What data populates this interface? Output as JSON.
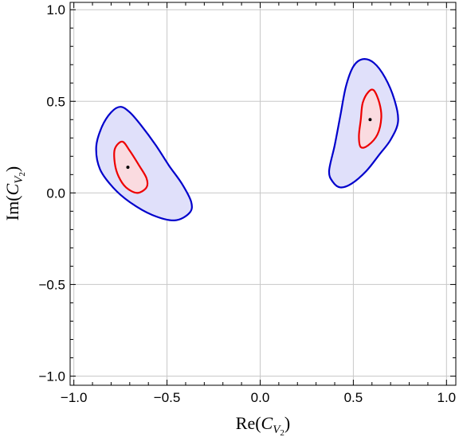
{
  "chart_data": {
    "type": "contour",
    "title": "",
    "xlabel": {
      "prefix": "Re(",
      "var": "C",
      "sub": "V",
      "subsub": "2",
      "suffix": ")"
    },
    "ylabel": {
      "prefix": "Im(",
      "var": "C",
      "sub": "V",
      "subsub": "2",
      "suffix": ")"
    },
    "xlim": [
      -1.02,
      1.05
    ],
    "ylim": [
      -1.05,
      1.04
    ],
    "xticks": [
      -1.0,
      -0.5,
      0.0,
      0.5,
      1.0
    ],
    "xtick_labels": [
      "−1.0",
      "−0.5",
      "0.0",
      "0.5",
      "1.0"
    ],
    "yticks": [
      -1.0,
      -0.5,
      0.0,
      0.5,
      1.0
    ],
    "ytick_labels": [
      "−1.0",
      "−0.5",
      "0.0",
      "0.5",
      "1.0"
    ],
    "grid": true,
    "colors": {
      "outer_stroke": "#0000cc",
      "outer_fill": "#e0e0fa",
      "inner_stroke": "#ee0000",
      "inner_fill": "#fadbe0",
      "grid": "#c8c8c8",
      "point": "#000000"
    },
    "regions": [
      {
        "level": "outer",
        "points": [
          [
            -0.75,
            0.47
          ],
          [
            -0.7,
            0.44
          ],
          [
            -0.64,
            0.37
          ],
          [
            -0.56,
            0.26
          ],
          [
            -0.49,
            0.15
          ],
          [
            -0.42,
            0.05
          ],
          [
            -0.37,
            -0.05
          ],
          [
            -0.38,
            -0.11
          ],
          [
            -0.46,
            -0.15
          ],
          [
            -0.58,
            -0.12
          ],
          [
            -0.7,
            -0.05
          ],
          [
            -0.79,
            0.03
          ],
          [
            -0.86,
            0.13
          ],
          [
            -0.88,
            0.25
          ],
          [
            -0.85,
            0.36
          ],
          [
            -0.8,
            0.44
          ]
        ]
      },
      {
        "level": "inner",
        "points": [
          [
            -0.74,
            0.28
          ],
          [
            -0.7,
            0.23
          ],
          [
            -0.65,
            0.15
          ],
          [
            -0.61,
            0.08
          ],
          [
            -0.61,
            0.03
          ],
          [
            -0.66,
            0.0
          ],
          [
            -0.72,
            0.03
          ],
          [
            -0.76,
            0.09
          ],
          [
            -0.78,
            0.16
          ],
          [
            -0.78,
            0.24
          ]
        ]
      },
      {
        "level": "outer",
        "points": [
          [
            0.55,
            0.73
          ],
          [
            0.61,
            0.71
          ],
          [
            0.67,
            0.63
          ],
          [
            0.72,
            0.51
          ],
          [
            0.74,
            0.39
          ],
          [
            0.7,
            0.29
          ],
          [
            0.64,
            0.21
          ],
          [
            0.57,
            0.12
          ],
          [
            0.49,
            0.05
          ],
          [
            0.43,
            0.03
          ],
          [
            0.39,
            0.06
          ],
          [
            0.37,
            0.12
          ],
          [
            0.4,
            0.26
          ],
          [
            0.43,
            0.42
          ],
          [
            0.46,
            0.58
          ],
          [
            0.5,
            0.69
          ]
        ]
      },
      {
        "level": "inner",
        "points": [
          [
            0.61,
            0.56
          ],
          [
            0.64,
            0.49
          ],
          [
            0.65,
            0.41
          ],
          [
            0.63,
            0.32
          ],
          [
            0.58,
            0.26
          ],
          [
            0.54,
            0.25
          ],
          [
            0.53,
            0.31
          ],
          [
            0.54,
            0.4
          ],
          [
            0.55,
            0.49
          ],
          [
            0.58,
            0.55
          ]
        ]
      }
    ],
    "best_fit_points": [
      {
        "x": -0.71,
        "y": 0.14
      },
      {
        "x": 0.59,
        "y": 0.4
      }
    ]
  }
}
